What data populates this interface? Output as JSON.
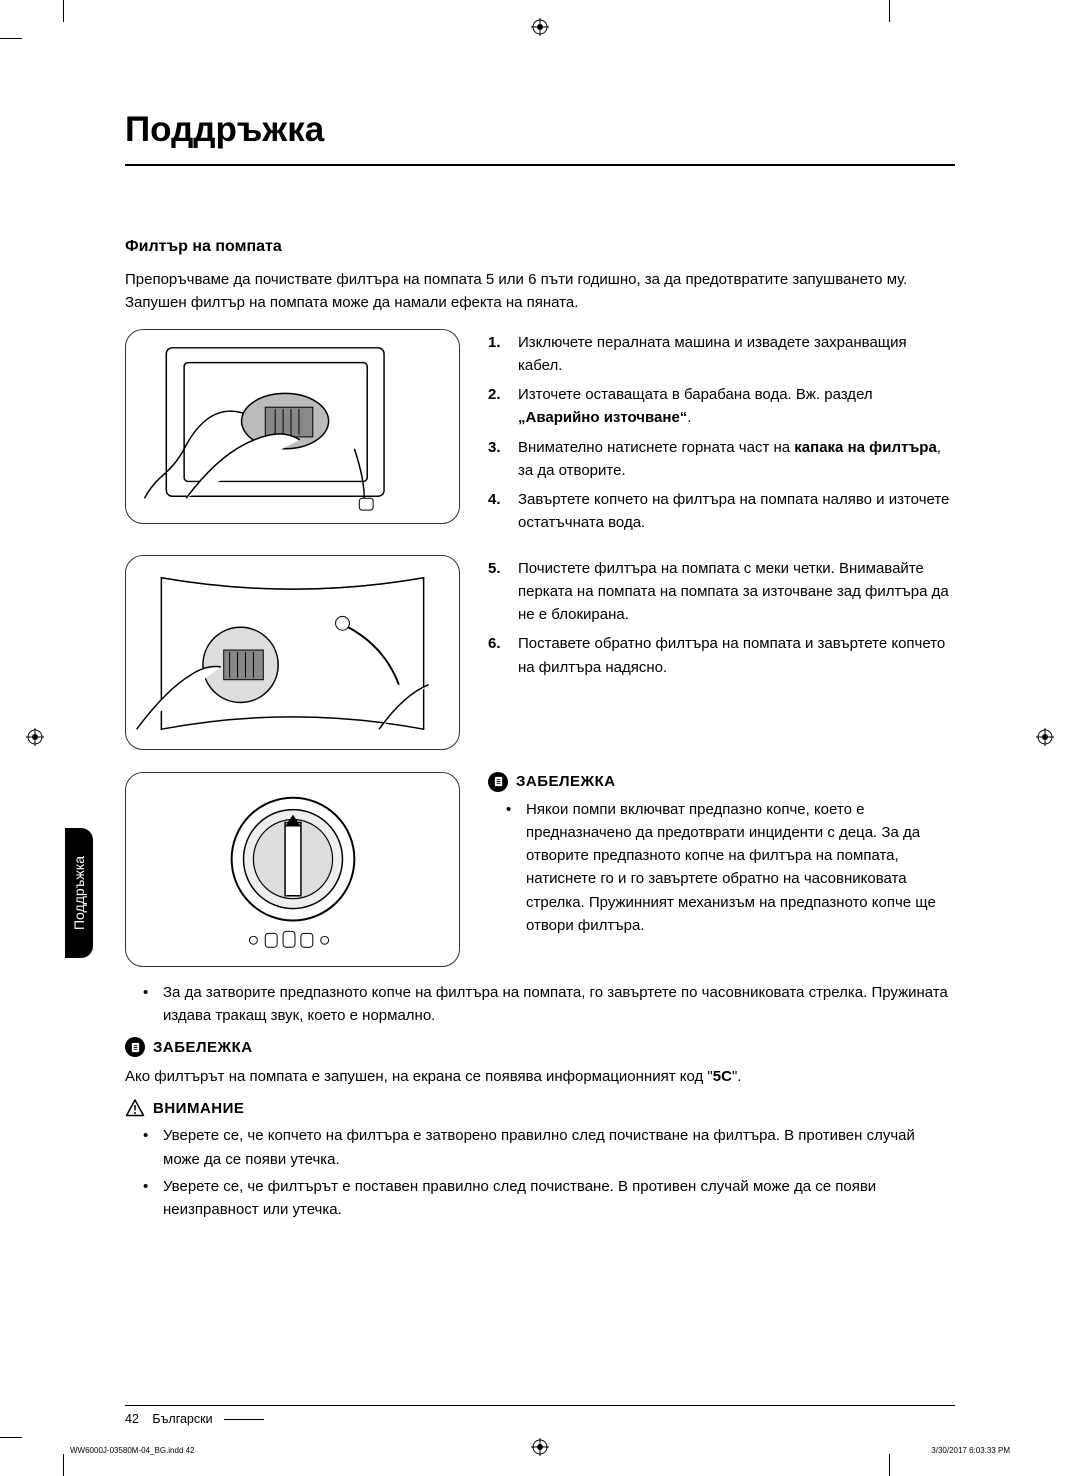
{
  "colors": {
    "text": "#000000",
    "bg": "#ffffff",
    "rule": "#000000",
    "tab_bg": "#000000",
    "tab_text": "#ffffff"
  },
  "typography": {
    "title_size_pt": 26,
    "body_size_pt": 11,
    "subtitle_size_pt": 12
  },
  "title": "Поддръжка",
  "subtitle": "Филтър на помпата",
  "intro": "Препоръчваме да почиствате филтъра на помпата 5 или 6 пъти годишно, за да предотвратите запушването му. Запушен филтър на помпата може да намали ефекта на пяната.",
  "blocks": [
    {
      "figure": "fig1",
      "steps": [
        {
          "num": "1.",
          "text": "Изключете пералната машина и извадете захранващия кабел."
        },
        {
          "num": "2.",
          "text_html": "Източете оставащата в барабана вода. Вж. раздел <b>„Аварийно източване“</b>."
        },
        {
          "num": "3.",
          "text_html": "Внимателно натиснете горната част на <b>капака на филтъра</b>, за да отворите."
        },
        {
          "num": "4.",
          "text": "Завъртете копчето на филтъра на помпата наляво и източете остатъчната вода."
        }
      ]
    },
    {
      "figure": "fig2",
      "steps": [
        {
          "num": "5.",
          "text": "Почистете филтъра на помпата с меки четки. Внимавайте перката на помпата на помпата за източване зад филтъра да не е блокирана."
        },
        {
          "num": "6.",
          "text": "Поставете обратно филтъра на помпата и завъртете копчето на филтъра надясно."
        }
      ]
    }
  ],
  "noteA": {
    "label": "ЗАБЕЛЕЖКА",
    "figure": "fig3",
    "bullets_right": [
      "Някои помпи включват предпазно копче, което е предназначено да предотврати инциденти с деца. За да отворите предпазното копче на филтъра на помпата, натиснете го и го завъртете обратно на часовниковата стрелка. Пружинният механизъм на предпазното копче ще отвори филтъра."
    ],
    "bullets_below": [
      "За да затворите предпазното копче на филтъра на помпата, го завъртете по часовниковата стрелка. Пружината издава тракащ звук, което е нормално."
    ]
  },
  "noteB": {
    "label": "ЗАБЕЛЕЖКА",
    "text_html": "Ако филтърът на помпата е запушен, на екрана се появява информационният код \"<b>5C</b>\"."
  },
  "caution": {
    "label": "ВНИМАНИЕ",
    "bullets": [
      "Уверете се, че копчето на филтъра е затворено правилно след почистване на филтъра. В противен случай може да се появи утечка.",
      "Уверете се, че филтърът е поставен правилно след почистване. В противен случай може да се появи неизправност или утечка."
    ]
  },
  "side_tab": "Поддръжка",
  "footer": {
    "page": "42",
    "lang": "Български"
  },
  "indd": {
    "left": "WW6000J-03580M-04_BG.indd   42",
    "right": "3/30/2017   6:03:33 PM"
  }
}
